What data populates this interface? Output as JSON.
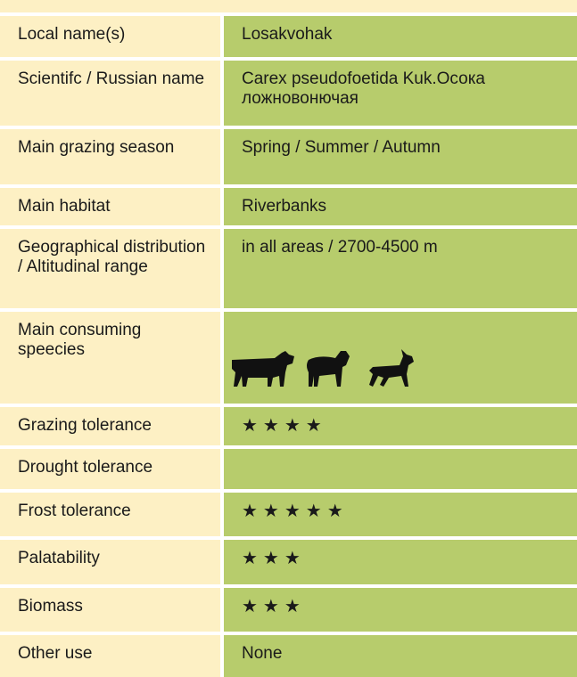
{
  "table": {
    "rows": [
      {
        "label": "Local name(s)",
        "value": "Losakvohak"
      },
      {
        "label": "Scientifc / Russian name",
        "value": "Carex pseudofoetida Kuk.Осока ложновонючая"
      },
      {
        "label": "Main grazing season",
        "value": "Spring / Summer / Autumn"
      },
      {
        "label": "Main habitat",
        "value": "Riverbanks"
      },
      {
        "label": "Geographical distribution / Altitudinal range",
        "value": "in all areas / 2700-4500 m"
      },
      {
        "label": "Main consuming speecies"
      },
      {
        "label": "Grazing tolerance",
        "value": "★★★★"
      },
      {
        "label": "Drought tolerance"
      },
      {
        "label": "Frost tolerance",
        "value": "★★★★★"
      },
      {
        "label": "Palatability",
        "value": "★★★"
      },
      {
        "label": "Biomass",
        "value": "★★★"
      },
      {
        "label": "Other use",
        "value": "None"
      }
    ]
  }
}
